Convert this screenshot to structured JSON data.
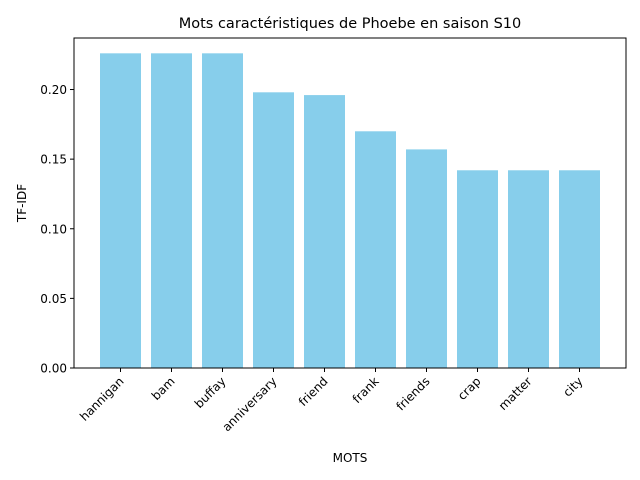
{
  "chart_data": {
    "type": "bar",
    "title": "Mots caractéristiques de Phoebe en saison S10",
    "xlabel": "MOTS",
    "ylabel": "TF-IDF",
    "categories": [
      "hannigan",
      "bam",
      "buffay",
      "anniversary",
      "friend",
      "frank",
      "friends",
      "crap",
      "matter",
      "city"
    ],
    "values": [
      0.226,
      0.226,
      0.226,
      0.198,
      0.196,
      0.17,
      0.157,
      0.142,
      0.142,
      0.142
    ],
    "ylim": [
      0,
      0.237
    ],
    "yticks": [
      0.0,
      0.05,
      0.1,
      0.15,
      0.2
    ],
    "ytick_labels": [
      "0.00",
      "0.05",
      "0.10",
      "0.15",
      "0.20"
    ],
    "bar_color": "#87CEEB",
    "grid": false,
    "xtick_rotation": 45
  }
}
